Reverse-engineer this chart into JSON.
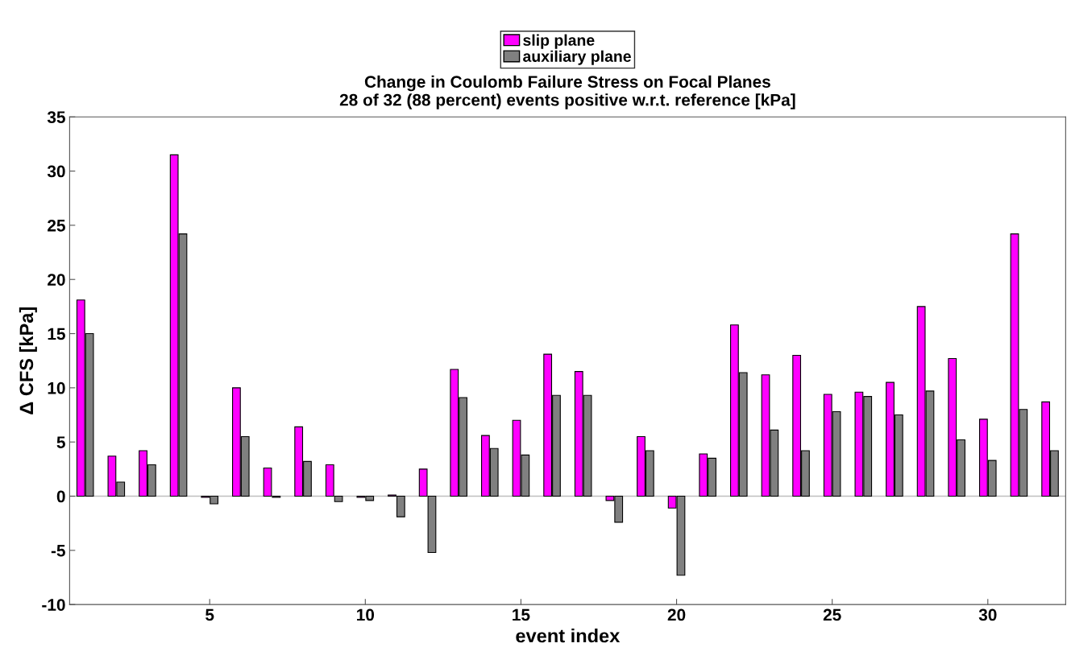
{
  "chart_data": {
    "type": "bar",
    "title": "Change in Coulomb Failure Stress on Focal Planes\n28 of 32 (88 percent) events positive w.r.t. reference [kPa]",
    "xlabel": "event index",
    "ylabel": "Δ CFS [kPa]",
    "x": [
      1,
      2,
      3,
      4,
      5,
      6,
      7,
      8,
      9,
      10,
      11,
      12,
      13,
      14,
      15,
      16,
      17,
      18,
      19,
      20,
      21,
      22,
      23,
      24,
      25,
      26,
      27,
      28,
      29,
      30,
      31,
      32
    ],
    "series": [
      {
        "name": "slip plane",
        "color": "#ff00ff",
        "values": [
          18.1,
          3.7,
          4.2,
          31.5,
          -0.1,
          10.0,
          2.6,
          6.4,
          2.9,
          -0.1,
          0.1,
          2.5,
          11.7,
          5.6,
          7.0,
          13.1,
          11.5,
          -0.4,
          5.5,
          -1.1,
          3.9,
          15.8,
          11.2,
          13.0,
          9.4,
          9.6,
          10.5,
          17.5,
          12.7,
          7.1,
          24.2,
          8.7
        ]
      },
      {
        "name": "auxiliary plane",
        "color": "#808080",
        "values": [
          15.0,
          1.3,
          2.9,
          24.2,
          -0.7,
          5.5,
          -0.1,
          3.2,
          -0.5,
          -0.4,
          -1.9,
          -5.2,
          9.1,
          4.4,
          3.8,
          9.3,
          9.3,
          -2.4,
          4.2,
          -7.3,
          3.5,
          11.4,
          6.1,
          4.2,
          7.8,
          9.2,
          7.5,
          9.7,
          5.2,
          3.3,
          8.0,
          4.2
        ]
      }
    ],
    "xlim": [
      0.5,
      32.5
    ],
    "xticks": [
      5,
      10,
      15,
      20,
      25,
      30
    ],
    "ylim": [
      -10,
      35
    ],
    "yticks": [
      -10,
      -5,
      0,
      5,
      10,
      15,
      20,
      25,
      30,
      35
    ],
    "ref_lines": [
      {
        "axis": "y",
        "value": 0,
        "color": "#bfbfbf"
      }
    ],
    "grid": false,
    "legend": "top"
  }
}
